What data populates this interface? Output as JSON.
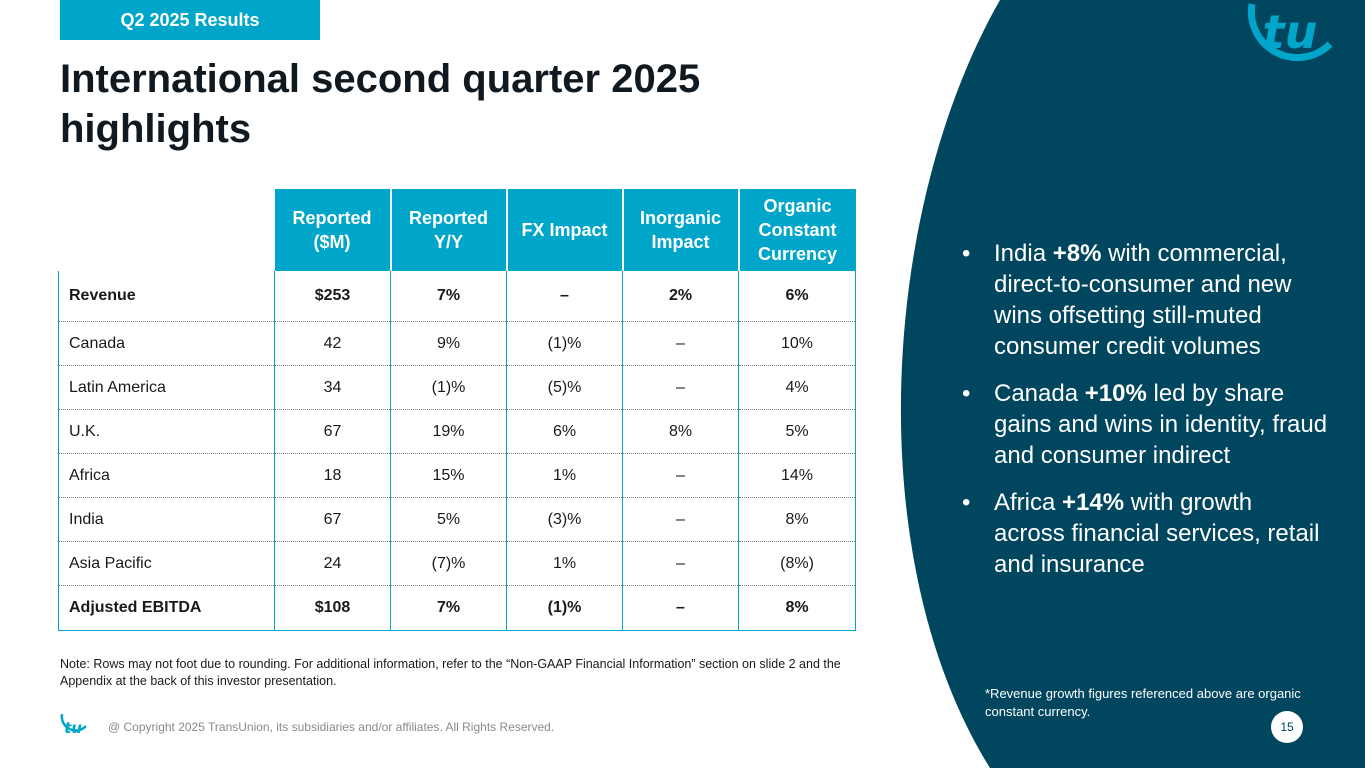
{
  "badge": "Q2 2025 Results",
  "title": "International second quarter 2025 highlights",
  "colors": {
    "accent": "#00a6ca",
    "navy": "#00465f",
    "text": "#101820"
  },
  "table": {
    "headers": [
      "Reported ($M)",
      "Reported Y/Y",
      "FX Impact",
      "Inorganic Impact",
      "Organic Constant Currency"
    ],
    "rows": [
      {
        "label": "Revenue",
        "cells": [
          "$253",
          "7%",
          "–",
          "2%",
          "6%"
        ]
      },
      {
        "label": "Canada",
        "cells": [
          "42",
          "9%",
          "(1)%",
          "–",
          "10%"
        ]
      },
      {
        "label": "Latin America",
        "cells": [
          "34",
          "(1)%",
          "(5)%",
          "–",
          "4%"
        ]
      },
      {
        "label": "U.K.",
        "cells": [
          "67",
          "19%",
          "6%",
          "8%",
          "5%"
        ]
      },
      {
        "label": "Africa",
        "cells": [
          "18",
          "15%",
          "1%",
          "–",
          "14%"
        ]
      },
      {
        "label": "India",
        "cells": [
          "67",
          "5%",
          "(3)%",
          "–",
          "8%"
        ]
      },
      {
        "label": "Asia Pacific",
        "cells": [
          "24",
          "(7)%",
          "1%",
          "–",
          "(8%)"
        ]
      },
      {
        "label": "Adjusted EBITDA",
        "cells": [
          "$108",
          "7%",
          "(1)%",
          "–",
          "8%"
        ]
      }
    ]
  },
  "note": "Note: Rows may not foot due to rounding. For additional information, refer to the “Non-GAAP Financial Information” section on slide 2 and the Appendix at the back of this investor presentation.",
  "bullets": [
    {
      "marker": "•",
      "pre": "India ",
      "bold": "+8%",
      "post": " with commercial, direct-to-consumer and new wins offsetting still-muted consumer credit volumes"
    },
    {
      "marker": "•",
      "pre": "Canada ",
      "bold": "+10%",
      "post": " led by share gains and wins in identity, fraud and consumer indirect"
    },
    {
      "marker": "•",
      "pre": "Africa ",
      "bold": "+14%",
      "post": " with growth across financial services, retail and insurance"
    }
  ],
  "footnote": "*Revenue growth figures referenced above are organic constant currency.",
  "copyright": "@ Copyright 2025 TransUnion, its subsidiaries and/or affiliates.  All Rights Reserved.",
  "page_number": "15",
  "logo_text": "tu"
}
